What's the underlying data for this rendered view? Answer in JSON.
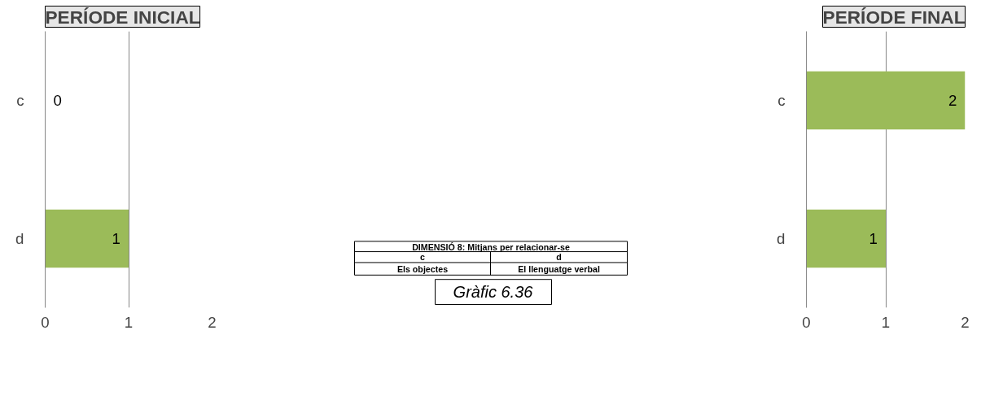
{
  "chart_data": [
    {
      "type": "bar",
      "orientation": "horizontal",
      "title": "PERÍODE INICIAL",
      "categories": [
        "c",
        "d"
      ],
      "values": [
        0,
        1
      ],
      "color": "#9bbb59",
      "xlim": [
        0,
        2
      ],
      "xticks": [
        0,
        1,
        2
      ],
      "grid": "x",
      "data_labels": true
    },
    {
      "type": "bar",
      "orientation": "horizontal",
      "title": "PERÍODE FINAL",
      "categories": [
        "c",
        "d"
      ],
      "values": [
        2,
        1
      ],
      "color": "#9bbb59",
      "xlim": [
        0,
        2
      ],
      "xticks": [
        0,
        1,
        2
      ],
      "grid": "x",
      "data_labels": true
    },
    {
      "type": "other",
      "title": "DIMENSIÓ 8: Mitjans per relacionar-se",
      "annotations": [
        "c",
        "d",
        "Els objectes",
        "El llenguatge verbal",
        "Gràfic 6.36"
      ]
    }
  ]
}
